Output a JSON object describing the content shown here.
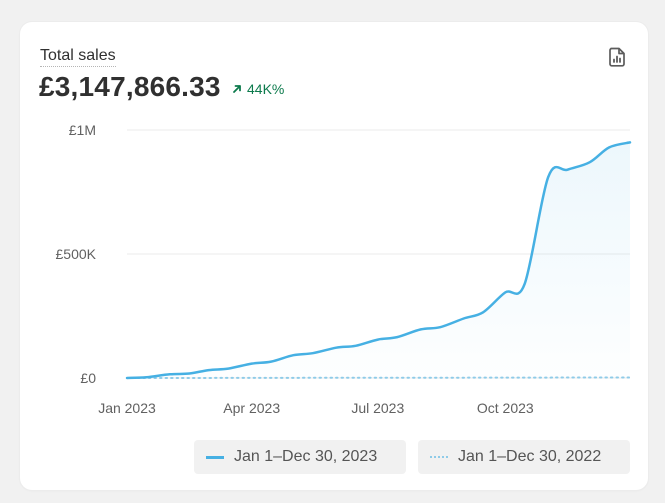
{
  "card": {
    "title": "Total sales",
    "total": "£3,147,866.33",
    "change": "44K%",
    "report_icon": "report-file-icon"
  },
  "legend": {
    "current": "Jan 1–Dec 30, 2023",
    "previous": "Jan 1–Dec 30, 2022"
  },
  "colors": {
    "current": "#46b0e3",
    "previous": "#8fcbe8",
    "positive": "#0c7a4c"
  },
  "chart_data": {
    "type": "line",
    "x": [
      "2023-01-01",
      "2023-01-15",
      "2023-02-01",
      "2023-02-15",
      "2023-03-01",
      "2023-03-15",
      "2023-04-01",
      "2023-04-15",
      "2023-05-01",
      "2023-05-15",
      "2023-06-01",
      "2023-06-15",
      "2023-07-01",
      "2023-07-15",
      "2023-08-01",
      "2023-08-15",
      "2023-09-01",
      "2023-09-15",
      "2023-10-01",
      "2023-10-15",
      "2023-11-01",
      "2023-11-15",
      "2023-12-01",
      "2023-12-15",
      "2023-12-30"
    ],
    "series": [
      {
        "name": "Jan 1–Dec 30, 2023",
        "values": [
          0,
          3000,
          15000,
          18000,
          32000,
          38000,
          58000,
          66000,
          92000,
          100000,
          122000,
          130000,
          155000,
          165000,
          196000,
          205000,
          240000,
          265000,
          345000,
          380000,
          810000,
          840000,
          870000,
          930000,
          950000
        ]
      },
      {
        "name": "Jan 1–Dec 30, 2022",
        "values": [
          0,
          0,
          0,
          100,
          200,
          300,
          400,
          500,
          600,
          700,
          800,
          900,
          1000,
          1100,
          1200,
          1300,
          1400,
          1500,
          1600,
          1700,
          1800,
          1900,
          2000,
          2100,
          2200
        ]
      }
    ],
    "y_ticks": [
      {
        "value": 0,
        "label": "£0"
      },
      {
        "value": 500000,
        "label": "£500K"
      },
      {
        "value": 1000000,
        "label": "£1M"
      }
    ],
    "x_ticks": [
      {
        "date": "2023-01-01",
        "label": "Jan 2023"
      },
      {
        "date": "2023-04-01",
        "label": "Apr 2023"
      },
      {
        "date": "2023-07-01",
        "label": "Jul 2023"
      },
      {
        "date": "2023-10-01",
        "label": "Oct 2023"
      }
    ],
    "ylim": [
      0,
      1000000
    ],
    "xlim": [
      "2023-01-01",
      "2023-12-30"
    ],
    "grid": true,
    "legend": "bottom"
  }
}
